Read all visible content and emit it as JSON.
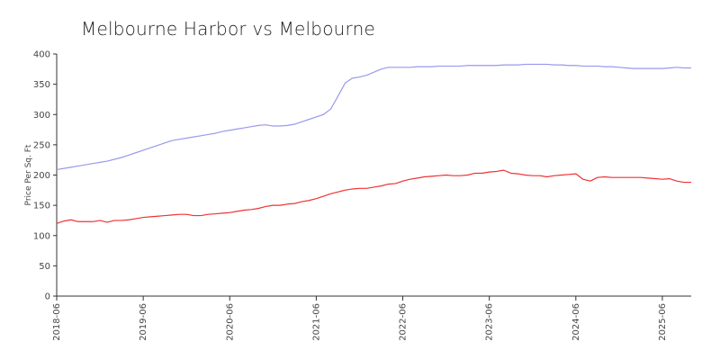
{
  "chart_data": {
    "type": "line",
    "title": "Melbourne Harbor vs Melbourne",
    "xlabel": "",
    "ylabel": "Price Per Sq. Ft",
    "ylim": [
      0,
      400
    ],
    "yticks": [
      0,
      50,
      100,
      150,
      200,
      250,
      300,
      350,
      400
    ],
    "x_tick_labels": [
      "2018-06",
      "2019-06",
      "2020-06",
      "2021-06",
      "2022-06",
      "2023-06",
      "2024-06",
      "2025-06"
    ],
    "grid": false,
    "x": [
      "2018-06",
      "2018-07",
      "2018-08",
      "2018-09",
      "2018-10",
      "2018-11",
      "2018-12",
      "2019-01",
      "2019-02",
      "2019-03",
      "2019-04",
      "2019-05",
      "2019-06",
      "2019-07",
      "2019-08",
      "2019-09",
      "2019-10",
      "2019-11",
      "2019-12",
      "2020-01",
      "2020-02",
      "2020-03",
      "2020-04",
      "2020-05",
      "2020-06",
      "2020-07",
      "2020-08",
      "2020-09",
      "2020-10",
      "2020-11",
      "2020-12",
      "2021-01",
      "2021-02",
      "2021-03",
      "2021-04",
      "2021-05",
      "2021-06",
      "2021-07",
      "2021-08",
      "2021-09",
      "2021-10",
      "2021-11",
      "2021-12",
      "2022-01",
      "2022-02",
      "2022-03",
      "2022-04",
      "2022-05",
      "2022-06",
      "2022-07",
      "2022-08",
      "2022-09",
      "2022-10",
      "2022-11",
      "2022-12",
      "2023-01",
      "2023-02",
      "2023-03",
      "2023-04",
      "2023-05",
      "2023-06",
      "2023-07",
      "2023-08",
      "2023-09",
      "2023-10",
      "2023-11",
      "2023-12",
      "2024-01",
      "2024-02",
      "2024-03",
      "2024-04",
      "2024-05",
      "2024-06",
      "2024-07",
      "2024-08",
      "2024-09",
      "2024-10",
      "2024-11",
      "2024-12",
      "2025-01",
      "2025-02",
      "2025-03",
      "2025-04",
      "2025-05",
      "2025-06",
      "2025-07",
      "2025-08",
      "2025-09",
      "2025-10"
    ],
    "series": [
      {
        "color": "#9999ee",
        "values": [
          209,
          211,
          213,
          215,
          217,
          219,
          221,
          223,
          226,
          229,
          233,
          237,
          241,
          245,
          249,
          253,
          257,
          259,
          261,
          263,
          265,
          267,
          269,
          272,
          274,
          276,
          278,
          280,
          282,
          283,
          281,
          281,
          282,
          284,
          288,
          292,
          296,
          300,
          309,
          330,
          352,
          360,
          362,
          365,
          370,
          375,
          378,
          378,
          378,
          378,
          379,
          379,
          379,
          380,
          380,
          380,
          380,
          381,
          381,
          381,
          381,
          381,
          382,
          382,
          382,
          383,
          383,
          383,
          383,
          382,
          382,
          381,
          381,
          380,
          380,
          380,
          379,
          379,
          378,
          377,
          376,
          376,
          376,
          376,
          376,
          377,
          378,
          377,
          377
        ]
      },
      {
        "color": "#ee3333",
        "values": [
          120,
          124,
          126,
          123,
          123,
          123,
          125,
          122,
          125,
          125,
          126,
          128,
          130,
          131,
          132,
          133,
          134,
          135,
          135,
          133,
          133,
          135,
          136,
          137,
          138,
          140,
          142,
          143,
          145,
          148,
          150,
          150,
          152,
          153,
          156,
          158,
          161,
          165,
          169,
          172,
          175,
          177,
          178,
          178,
          180,
          182,
          185,
          186,
          190,
          193,
          195,
          197,
          198,
          199,
          200,
          199,
          199,
          200,
          203,
          203,
          205,
          206,
          208,
          203,
          202,
          200,
          199,
          199,
          197,
          199,
          200,
          201,
          202,
          193,
          190,
          196,
          197,
          196,
          196,
          196,
          196,
          196,
          195,
          194,
          193,
          194,
          190,
          188,
          188
        ]
      }
    ]
  }
}
